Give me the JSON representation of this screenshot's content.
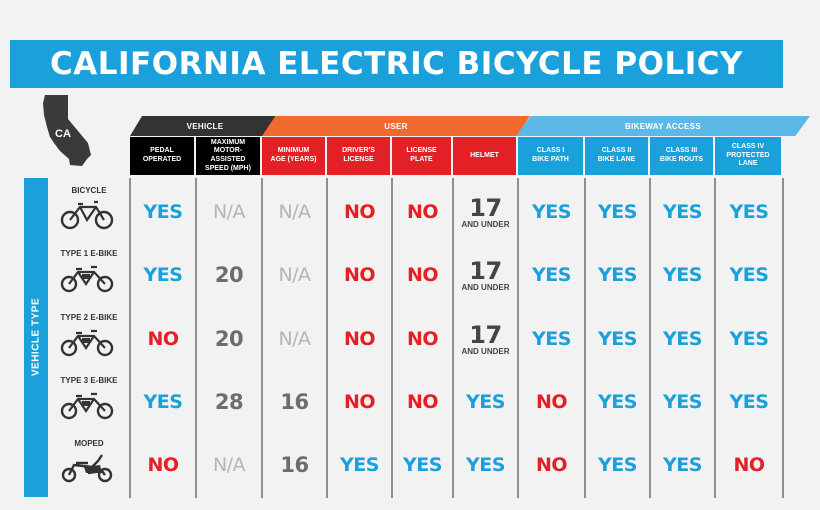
{
  "title": "CALIFORNIA ELECTRIC BICYCLE POLICY",
  "state_abbr": "CA",
  "groups": {
    "vehicle": "VEHICLE",
    "user": "USER",
    "access": "BIKEWAY ACCESS"
  },
  "columns": [
    "PEDAL\nOPERATED",
    "MAXIMUM\nMOTOR-ASSISTED\nSPEED (MPH)",
    "MINIMUM\nAGE (YEARS)",
    "DRIVER'S\nLICENSE",
    "LICENSE\nPLATE",
    "HELMET",
    "CLASS I\nBIKE PATH",
    "CLASS II\nBIKE LANE",
    "CLASS III\nBIKE ROUTS",
    "CLASS IV\nPROTECTED LANE"
  ],
  "side_label": "VEHICLE TYPE",
  "rows": [
    {
      "label": "BICYCLE",
      "icon": "bicycle-icon",
      "cells": [
        "YES",
        "N/A",
        "N/A",
        "NO",
        "NO",
        "17|AND UNDER",
        "YES",
        "YES",
        "YES",
        "YES"
      ]
    },
    {
      "label": "TYPE 1 E-BIKE",
      "icon": "e-bike-icon",
      "cells": [
        "YES",
        "20",
        "N/A",
        "NO",
        "NO",
        "17|AND UNDER",
        "YES",
        "YES",
        "YES",
        "YES"
      ]
    },
    {
      "label": "TYPE 2 E-BIKE",
      "icon": "e-bike-icon",
      "cells": [
        "NO",
        "20",
        "N/A",
        "NO",
        "NO",
        "17|AND UNDER",
        "YES",
        "YES",
        "YES",
        "YES"
      ]
    },
    {
      "label": "TYPE 3 E-BIKE",
      "icon": "e-bike-icon",
      "cells": [
        "YES",
        "28",
        "16",
        "NO",
        "NO",
        "YES",
        "NO",
        "YES",
        "YES",
        "YES"
      ]
    },
    {
      "label": "MOPED",
      "icon": "moped-icon",
      "cells": [
        "NO",
        "N/A",
        "16",
        "YES",
        "YES",
        "YES",
        "NO",
        "YES",
        "YES",
        "NO"
      ]
    }
  ],
  "colors": {
    "accent": "#1aa0db",
    "no": "#e32026",
    "user": "#ef6a2c",
    "vehicle": "#333333",
    "na": "#b5b5b5"
  }
}
